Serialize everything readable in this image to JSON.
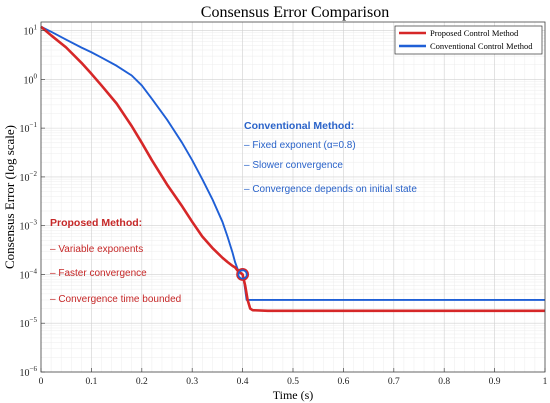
{
  "chart_data": {
    "type": "line",
    "title": "Consensus Error Comparison",
    "xlabel": "Time (s)",
    "ylabel": "Consensus Error (log scale)",
    "xlim": [
      0,
      1
    ],
    "ylim": [
      1e-06,
      15
    ],
    "yscale": "log",
    "grid": true,
    "legend_position": "top-right",
    "x_ticks": [
      "0",
      "0.1",
      "0.2",
      "0.3",
      "0.4",
      "0.5",
      "0.6",
      "0.7",
      "0.8",
      "0.9",
      "1"
    ],
    "y_ticks": [
      {
        "base": "10",
        "exp": "1"
      },
      {
        "base": "10",
        "exp": "0"
      },
      {
        "base": "10",
        "exp": "−1"
      },
      {
        "base": "10",
        "exp": "−2"
      },
      {
        "base": "10",
        "exp": "−3"
      },
      {
        "base": "10",
        "exp": "−4"
      },
      {
        "base": "10",
        "exp": "−5"
      },
      {
        "base": "10",
        "exp": "−6"
      }
    ],
    "series": [
      {
        "name": "Proposed Control Method",
        "color": "#d62728",
        "x": [
          0,
          0.02,
          0.05,
          0.08,
          0.1,
          0.12,
          0.15,
          0.18,
          0.2,
          0.22,
          0.25,
          0.28,
          0.3,
          0.32,
          0.34,
          0.36,
          0.37,
          0.38,
          0.385,
          0.39,
          0.395,
          0.4,
          0.405,
          0.41,
          0.415,
          0.42,
          0.45,
          0.5,
          0.6,
          0.7,
          0.8,
          0.9,
          1.0
        ],
        "y": [
          12,
          8,
          4.5,
          2.2,
          1.3,
          0.75,
          0.32,
          0.11,
          0.05,
          0.022,
          0.007,
          0.0025,
          0.0012,
          0.0006,
          0.00035,
          0.00022,
          0.00018,
          0.00015,
          0.00014,
          0.00012,
          0.00011,
          0.0001,
          6e-05,
          3e-05,
          2e-05,
          1.85e-05,
          1.8e-05,
          1.8e-05,
          1.8e-05,
          1.8e-05,
          1.8e-05,
          1.8e-05,
          1.8e-05
        ]
      },
      {
        "name": "Conventional Control Method",
        "color": "#1f5fd6",
        "x": [
          0,
          0.02,
          0.05,
          0.08,
          0.1,
          0.12,
          0.15,
          0.18,
          0.2,
          0.22,
          0.25,
          0.28,
          0.3,
          0.32,
          0.34,
          0.36,
          0.37,
          0.38,
          0.385,
          0.39,
          0.395,
          0.4,
          0.403,
          0.405,
          0.408,
          0.41,
          0.45,
          0.5,
          0.6,
          0.7,
          0.8,
          0.9,
          1.0
        ],
        "y": [
          12,
          9.5,
          6.5,
          4.5,
          3.6,
          2.8,
          1.9,
          1.2,
          0.75,
          0.4,
          0.15,
          0.05,
          0.022,
          0.009,
          0.0035,
          0.0012,
          0.0006,
          0.00028,
          0.00018,
          0.00013,
          0.00011,
          0.0001,
          7e-05,
          5e-05,
          3e-05,
          3e-05,
          3e-05,
          3e-05,
          3e-05,
          3e-05,
          3e-05,
          3e-05,
          3e-05
        ]
      }
    ],
    "markers": [
      {
        "x": 0.4,
        "y": 0.0001,
        "color": "#d62728"
      },
      {
        "x": 0.4,
        "y": 0.0001,
        "color": "#1f5fd6"
      }
    ],
    "annotations": {
      "conventional": {
        "title": "Conventional Method:",
        "lines": [
          "– Fixed exponent (α=0.8)",
          "– Slower convergence",
          "– Convergence depends on initial state"
        ],
        "color": "#2a63c9"
      },
      "proposed": {
        "title": "Proposed Method:",
        "lines": [
          "– Variable exponents",
          "– Faster convergence",
          "– Convergence time bounded"
        ],
        "color": "#c62828"
      }
    }
  }
}
